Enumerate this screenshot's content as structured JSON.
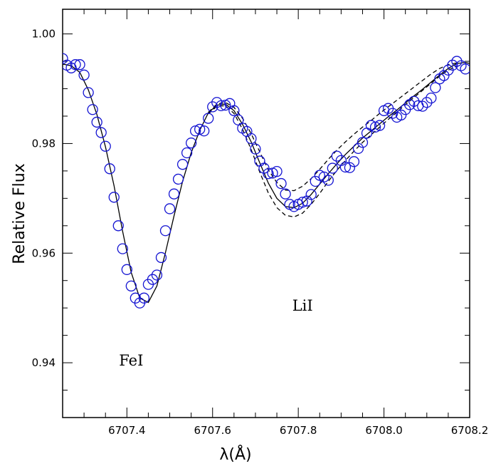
{
  "chart_data": {
    "type": "scatter",
    "xlabel": "λ(Å)",
    "ylabel": "Relative Flux",
    "xlim": [
      6707.25,
      6708.2
    ],
    "ylim": [
      0.93,
      1.0045
    ],
    "x_ticks": [
      {
        "value": 6707.4,
        "label": "6707.4"
      },
      {
        "value": 6707.6,
        "label": "6707.6"
      },
      {
        "value": 6707.8,
        "label": "6707.8"
      },
      {
        "value": 6708.0,
        "label": "6708.0"
      },
      {
        "value": 6708.2,
        "label": "6708.2"
      }
    ],
    "y_ticks": [
      {
        "value": 0.94,
        "label": "0.94"
      },
      {
        "value": 0.96,
        "label": "0.96"
      },
      {
        "value": 0.98,
        "label": "0.98"
      },
      {
        "value": 1.0,
        "label": "1.00"
      }
    ],
    "annotations": [
      {
        "text": "FeI",
        "x": 6707.41,
        "y": 0.9395
      },
      {
        "text": "LiI",
        "x": 6707.81,
        "y": 0.9495
      }
    ],
    "marker_color": "#1414d2",
    "line_color": "#000000",
    "series": [
      {
        "style": "open-circle",
        "x": [
          6707.25,
          6707.26,
          6707.27,
          6707.28,
          6707.29,
          6707.3,
          6707.31,
          6707.32,
          6707.33,
          6707.34,
          6707.35,
          6707.36,
          6707.37,
          6707.38,
          6707.39,
          6707.4,
          6707.41,
          6707.42,
          6707.43,
          6707.44,
          6707.45,
          6707.46,
          6707.47,
          6707.48,
          6707.49,
          6707.5,
          6707.51,
          6707.52,
          6707.53,
          6707.54,
          6707.55,
          6707.56,
          6707.57,
          6707.58,
          6707.59,
          6707.6,
          6707.61,
          6707.62,
          6707.63,
          6707.64,
          6707.65,
          6707.66,
          6707.67,
          6707.68,
          6707.69,
          6707.7,
          6707.71,
          6707.72,
          6707.73,
          6707.74,
          6707.75,
          6707.76,
          6707.77,
          6707.78,
          6707.79,
          6707.8,
          6707.81,
          6707.82,
          6707.83,
          6707.84,
          6707.85,
          6707.86,
          6707.87,
          6707.88,
          6707.89,
          6707.9,
          6707.91,
          6707.92,
          6707.93,
          6707.94,
          6707.95,
          6707.96,
          6707.97,
          6707.98,
          6707.99,
          6708.0,
          6708.01,
          6708.02,
          6708.03,
          6708.04,
          6708.05,
          6708.06,
          6708.07,
          6708.08,
          6708.09,
          6708.1,
          6708.11,
          6708.12,
          6708.13,
          6708.14,
          6708.15,
          6708.16,
          6708.17,
          6708.18,
          6708.19
        ],
        "values": [
          0.9955,
          0.9943,
          0.9938,
          0.9944,
          0.9944,
          0.9925,
          0.9893,
          0.9862,
          0.9839,
          0.982,
          0.9795,
          0.9754,
          0.9702,
          0.965,
          0.9608,
          0.957,
          0.954,
          0.9518,
          0.9509,
          0.9518,
          0.9543,
          0.9552,
          0.956,
          0.9592,
          0.9641,
          0.9681,
          0.9708,
          0.9735,
          0.9762,
          0.9783,
          0.9801,
          0.9823,
          0.9826,
          0.9823,
          0.9846,
          0.9867,
          0.9875,
          0.9869,
          0.987,
          0.9873,
          0.986,
          0.9843,
          0.9828,
          0.9822,
          0.9809,
          0.979,
          0.9768,
          0.9755,
          0.9745,
          0.9746,
          0.9749,
          0.9727,
          0.9708,
          0.9689,
          0.9685,
          0.9689,
          0.9693,
          0.9695,
          0.9707,
          0.9731,
          0.9742,
          0.9739,
          0.9733,
          0.9755,
          0.9777,
          0.9769,
          0.9757,
          0.9756,
          0.9767,
          0.9791,
          0.9802,
          0.9819,
          0.9833,
          0.983,
          0.9833,
          0.986,
          0.9864,
          0.9855,
          0.9848,
          0.9852,
          0.9862,
          0.9871,
          0.9877,
          0.9869,
          0.9868,
          0.9875,
          0.9883,
          0.9902,
          0.9918,
          0.9924,
          0.9934,
          0.9943,
          0.995,
          0.9942,
          0.9936
        ]
      },
      {
        "style": "solid",
        "x": [
          6707.25,
          6707.27,
          6707.29,
          6707.31,
          6707.33,
          6707.35,
          6707.37,
          6707.39,
          6707.41,
          6707.43,
          6707.45,
          6707.47,
          6707.49,
          6707.51,
          6707.53,
          6707.55,
          6707.57,
          6707.59,
          6707.61,
          6707.63,
          6707.65,
          6707.67,
          6707.69,
          6707.71,
          6707.73,
          6707.75,
          6707.77,
          6707.79,
          6707.81,
          6707.83,
          6707.85,
          6707.87,
          6707.89,
          6707.91,
          6707.93,
          6707.95,
          6707.97,
          6707.99,
          6708.01,
          6708.03,
          6708.05,
          6708.07,
          6708.09,
          6708.11,
          6708.13,
          6708.15,
          6708.17,
          6708.19,
          6708.2
        ],
        "values": [
          0.9945,
          0.9942,
          0.993,
          0.9898,
          0.9853,
          0.9794,
          0.9723,
          0.964,
          0.9565,
          0.9518,
          0.951,
          0.954,
          0.9601,
          0.9668,
          0.9731,
          0.9783,
          0.9824,
          0.9856,
          0.987,
          0.9872,
          0.986,
          0.9835,
          0.9803,
          0.9765,
          0.9728,
          0.97,
          0.9685,
          0.9683,
          0.9691,
          0.9707,
          0.9726,
          0.9745,
          0.9763,
          0.978,
          0.9795,
          0.981,
          0.9823,
          0.9836,
          0.9849,
          0.9861,
          0.9874,
          0.9887,
          0.9899,
          0.9912,
          0.9925,
          0.9937,
          0.9946,
          0.9948,
          0.9946
        ]
      },
      {
        "style": "dashed",
        "x": [
          6707.59,
          6707.61,
          6707.63,
          6707.65,
          6707.67,
          6707.69,
          6707.71,
          6707.73,
          6707.75,
          6707.77,
          6707.79,
          6707.81,
          6707.83,
          6707.85,
          6707.87,
          6707.89,
          6707.91,
          6707.93,
          6707.95,
          6707.97,
          6707.99,
          6708.01,
          6708.03,
          6708.05,
          6708.07,
          6708.09,
          6708.11,
          6708.13,
          6708.15,
          6708.17
        ],
        "values": [
          0.9857,
          0.9872,
          0.9875,
          0.9866,
          0.9846,
          0.9818,
          0.9785,
          0.9752,
          0.9729,
          0.9715,
          0.9714,
          0.9722,
          0.9736,
          0.9753,
          0.9771,
          0.9788,
          0.9803,
          0.9817,
          0.983,
          0.9842,
          0.9855,
          0.9867,
          0.9879,
          0.9891,
          0.9903,
          0.9915,
          0.9927,
          0.9937,
          0.9944,
          0.9947
        ]
      },
      {
        "style": "dashed",
        "x": [
          6707.59,
          6707.61,
          6707.63,
          6707.65,
          6707.67,
          6707.69,
          6707.71,
          6707.73,
          6707.75,
          6707.77,
          6707.79,
          6707.81,
          6707.83,
          6707.85,
          6707.87,
          6707.89,
          6707.91,
          6707.93,
          6707.95,
          6707.97,
          6707.99,
          6708.01,
          6708.03,
          6708.05,
          6708.07,
          6708.09,
          6708.11,
          6708.13,
          6708.15,
          6708.17
        ],
        "values": [
          0.9854,
          0.9868,
          0.9869,
          0.9855,
          0.9826,
          0.9789,
          0.9748,
          0.971,
          0.9683,
          0.9669,
          0.9666,
          0.9673,
          0.9689,
          0.9709,
          0.9731,
          0.9751,
          0.9769,
          0.9786,
          0.9802,
          0.9816,
          0.983,
          0.9844,
          0.9857,
          0.9871,
          0.9884,
          0.9897,
          0.991,
          0.9923,
          0.9934,
          0.9941
        ]
      }
    ]
  }
}
